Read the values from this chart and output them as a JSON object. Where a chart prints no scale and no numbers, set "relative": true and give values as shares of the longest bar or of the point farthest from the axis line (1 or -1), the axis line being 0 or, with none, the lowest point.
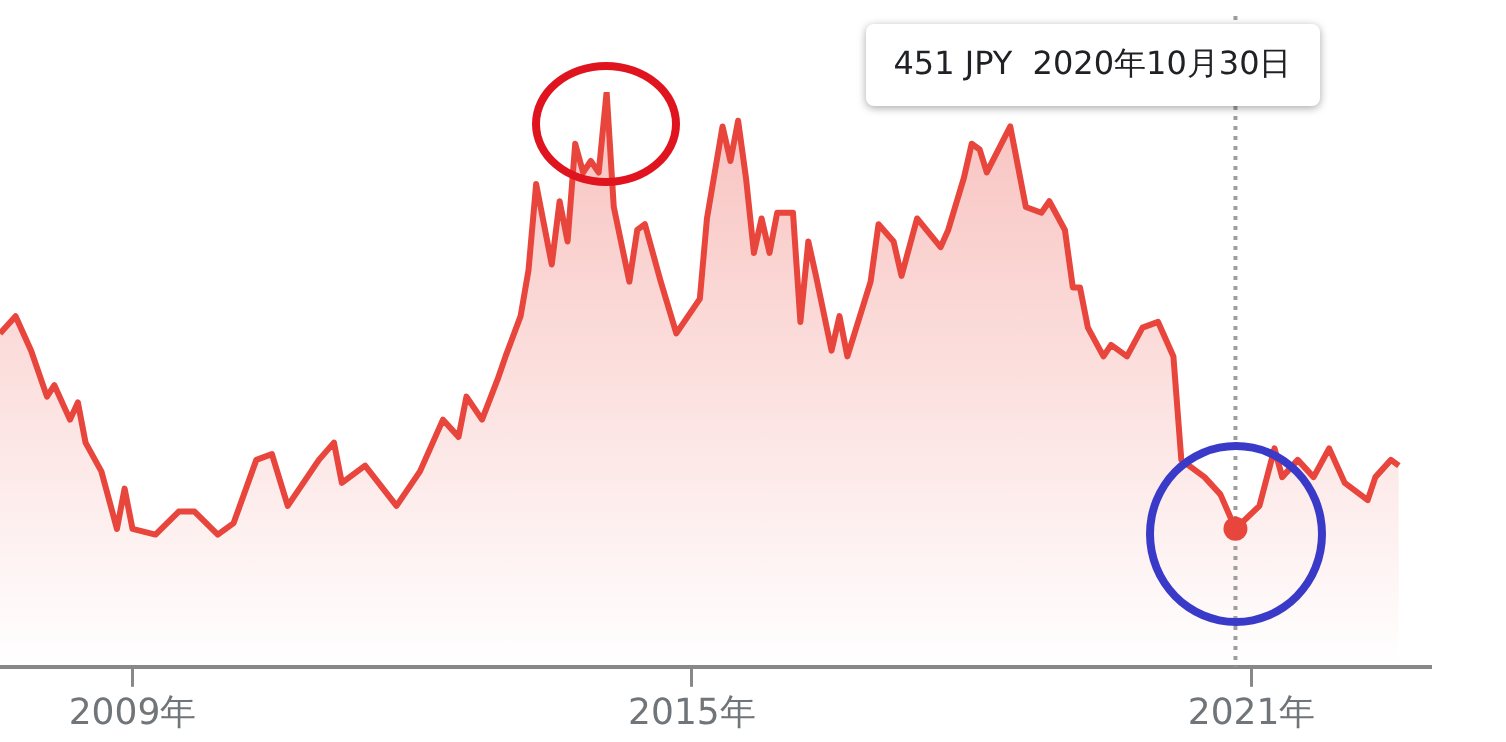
{
  "chart_data": {
    "type": "area",
    "relative": true,
    "x": [
      "2007-08",
      "2007-10",
      "2007-12",
      "2008-02",
      "2008-03",
      "2008-05",
      "2008-06",
      "2008-07",
      "2008-09",
      "2008-11",
      "2008-12",
      "2009-01",
      "2009-04",
      "2009-07",
      "2009-09",
      "2009-12",
      "2010-02",
      "2010-05",
      "2010-07",
      "2010-09",
      "2011-01",
      "2011-03",
      "2011-04",
      "2011-07",
      "2011-11",
      "2012-02",
      "2012-05",
      "2012-07",
      "2012-08",
      "2012-10",
      "2012-12",
      "2013-01",
      "2013-03",
      "2013-04",
      "2013-05",
      "2013-07",
      "2013-08",
      "2013-09",
      "2013-10",
      "2013-11",
      "2013-12",
      "2014-01",
      "2014-02",
      "2014-03",
      "2014-05",
      "2014-06",
      "2014-07",
      "2014-09",
      "2014-11",
      "2015-02",
      "2015-03",
      "2015-05",
      "2015-06",
      "2015-07",
      "2015-08",
      "2015-09",
      "2015-10",
      "2015-11",
      "2015-12",
      "2016-02",
      "2016-03",
      "2016-04",
      "2016-05",
      "2016-07",
      "2016-08",
      "2016-09",
      "2016-12",
      "2017-01",
      "2017-03",
      "2017-04",
      "2017-06",
      "2017-09",
      "2017-10",
      "2017-12",
      "2018-01",
      "2018-02",
      "2018-03",
      "2018-06",
      "2018-08",
      "2018-10",
      "2018-11",
      "2019-01",
      "2019-02",
      "2019-03",
      "2019-04",
      "2019-06",
      "2019-07",
      "2019-09",
      "2019-11",
      "2020-01",
      "2020-03",
      "2020-04",
      "2020-05",
      "2020-07",
      "2020-09",
      "2020-10-30",
      "2021-02",
      "2021-04",
      "2021-05",
      "2021-07",
      "2021-09",
      "2021-11",
      "2022-01",
      "2022-04",
      "2022-05",
      "2022-07",
      "2022-08"
    ],
    "series": [
      {
        "color": "#e8453c",
        "values": [
          0.58,
          0.61,
          0.55,
          0.47,
          0.49,
          0.43,
          0.46,
          0.39,
          0.34,
          0.24,
          0.31,
          0.24,
          0.23,
          0.27,
          0.27,
          0.23,
          0.25,
          0.36,
          0.37,
          0.28,
          0.36,
          0.39,
          0.32,
          0.35,
          0.28,
          0.34,
          0.43,
          0.4,
          0.47,
          0.43,
          0.5,
          0.54,
          0.61,
          0.69,
          0.84,
          0.7,
          0.81,
          0.74,
          0.91,
          0.86,
          0.88,
          0.86,
          1,
          0.8,
          0.67,
          0.76,
          0.77,
          0.67,
          0.58,
          0.64,
          0.78,
          0.94,
          0.88,
          0.95,
          0.85,
          0.72,
          0.78,
          0.72,
          0.79,
          0.79,
          0.6,
          0.74,
          0.68,
          0.55,
          0.61,
          0.54,
          0.67,
          0.77,
          0.74,
          0.68,
          0.78,
          0.73,
          0.76,
          0.85,
          0.91,
          0.9,
          0.86,
          0.94,
          0.8,
          0.79,
          0.81,
          0.76,
          0.66,
          0.66,
          0.59,
          0.54,
          0.56,
          0.54,
          0.59,
          0.6,
          0.54,
          0.36,
          0.35,
          0.33,
          0.3,
          0.24,
          0.28,
          0.38,
          0.33,
          0.36,
          0.33,
          0.38,
          0.32,
          0.29,
          0.33,
          0.36,
          0.35
        ]
      }
    ],
    "xlim": [
      "2007-08",
      "2022-12"
    ],
    "xticks": [
      {
        "value": "2009",
        "label": "2009年"
      },
      {
        "value": "2015",
        "label": "2015年"
      },
      {
        "value": "2021",
        "label": "2021年"
      }
    ],
    "ref_lines": [
      {
        "axis": "x",
        "value": "2020-10-30",
        "color": "#9e9e9e",
        "line_style": "dotted"
      }
    ],
    "annotations": [
      "451 JPY  2020年10月30日"
    ],
    "legend": false,
    "grid": false,
    "marker": "none",
    "line_style": "solid"
  }
}
